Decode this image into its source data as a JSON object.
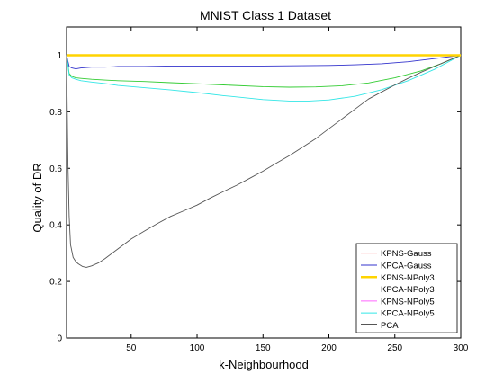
{
  "chart_data": {
    "type": "line",
    "title": "MNIST Class 1 Dataset",
    "xlabel": "k-Neighbourhood",
    "ylabel": "Quality of DR",
    "xlim": [
      1,
      300
    ],
    "ylim": [
      0,
      1.1
    ],
    "x_ticks": [
      50,
      100,
      150,
      200,
      250,
      300
    ],
    "y_ticks": [
      0,
      0.2,
      0.4,
      0.6,
      0.8,
      1
    ],
    "legend_position": "bottom-right",
    "grid": false,
    "series": [
      {
        "name": "KPNS-Gauss",
        "color": "#ff6b6b",
        "x": [
          1,
          50,
          100,
          150,
          200,
          250,
          300
        ],
        "y": [
          1,
          1,
          1,
          1,
          1,
          1,
          1
        ]
      },
      {
        "name": "KPCA-Gauss",
        "color": "#3333cc",
        "x": [
          1,
          3,
          5,
          8,
          12,
          20,
          30,
          40,
          60,
          80,
          100,
          120,
          150,
          180,
          200,
          220,
          240,
          260,
          280,
          300
        ],
        "y": [
          1.0,
          0.96,
          0.955,
          0.952,
          0.955,
          0.958,
          0.958,
          0.96,
          0.96,
          0.962,
          0.962,
          0.962,
          0.962,
          0.963,
          0.964,
          0.966,
          0.97,
          0.977,
          0.988,
          1.0
        ]
      },
      {
        "name": "KPNS-NPoly3",
        "color": "#ffd400",
        "x": [
          1,
          50,
          100,
          150,
          200,
          250,
          300
        ],
        "y": [
          1,
          1,
          1,
          1,
          1,
          1,
          1
        ]
      },
      {
        "name": "KPCA-NPoly3",
        "color": "#33cc33",
        "x": [
          1,
          3,
          5,
          8,
          12,
          20,
          30,
          40,
          60,
          80,
          100,
          120,
          150,
          170,
          190,
          210,
          230,
          250,
          270,
          285,
          300
        ],
        "y": [
          1.0,
          0.935,
          0.925,
          0.92,
          0.918,
          0.915,
          0.912,
          0.91,
          0.907,
          0.903,
          0.899,
          0.895,
          0.889,
          0.887,
          0.888,
          0.892,
          0.902,
          0.92,
          0.945,
          0.97,
          1.0
        ]
      },
      {
        "name": "KPNS-NPoly5",
        "color": "#ff66ff",
        "x": [
          1,
          50,
          100,
          150,
          200,
          250,
          300
        ],
        "y": [
          1,
          1,
          1,
          1,
          1,
          1,
          1
        ]
      },
      {
        "name": "KPCA-NPoly5",
        "color": "#33e6e6",
        "x": [
          1,
          3,
          5,
          8,
          12,
          20,
          30,
          40,
          60,
          80,
          100,
          120,
          150,
          170,
          185,
          200,
          220,
          240,
          260,
          280,
          300
        ],
        "y": [
          1.0,
          0.93,
          0.92,
          0.915,
          0.91,
          0.905,
          0.9,
          0.893,
          0.885,
          0.877,
          0.868,
          0.857,
          0.843,
          0.838,
          0.838,
          0.842,
          0.855,
          0.878,
          0.91,
          0.95,
          1.0
        ]
      },
      {
        "name": "PCA",
        "color": "#555555",
        "x": [
          1,
          2,
          3,
          4,
          6,
          8,
          10,
          13,
          16,
          20,
          25,
          30,
          40,
          50,
          60,
          70,
          80,
          90,
          100,
          110,
          120,
          130,
          140,
          150,
          160,
          170,
          180,
          190,
          200,
          210,
          220,
          230,
          240,
          250,
          260,
          270,
          280,
          290,
          300
        ],
        "y": [
          1.0,
          0.62,
          0.43,
          0.33,
          0.285,
          0.27,
          0.262,
          0.253,
          0.25,
          0.255,
          0.265,
          0.28,
          0.315,
          0.35,
          0.378,
          0.405,
          0.43,
          0.45,
          0.47,
          0.495,
          0.518,
          0.54,
          0.565,
          0.59,
          0.618,
          0.645,
          0.675,
          0.705,
          0.74,
          0.775,
          0.81,
          0.845,
          0.87,
          0.895,
          0.918,
          0.94,
          0.96,
          0.98,
          1.0
        ]
      }
    ]
  }
}
